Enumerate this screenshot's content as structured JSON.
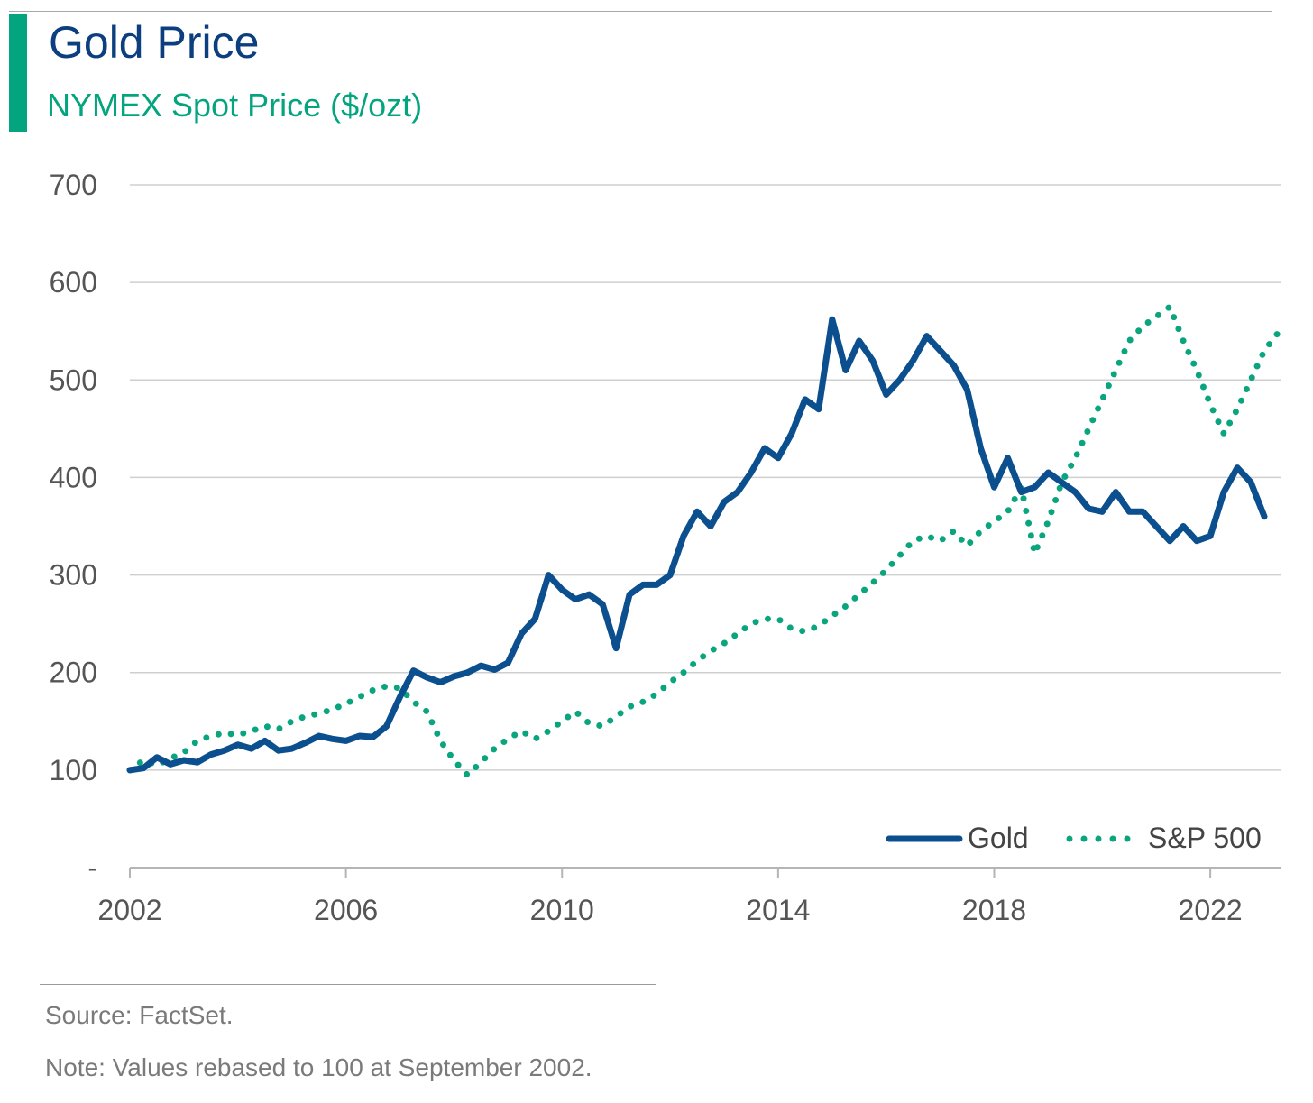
{
  "header": {
    "title": "Gold Price",
    "subtitle": "NYMEX Spot Price ($/ozt)"
  },
  "colors": {
    "accent": "#03a47e",
    "gold": "#0b4f8f",
    "sp500": "#0aa57f",
    "grid": "#cfcfcf",
    "text": "#555555"
  },
  "footer": {
    "source": "Source: FactSet.",
    "note": "Note: Values rebased to 100 at September 2002."
  },
  "chart_data": {
    "type": "line",
    "title": "Gold Price",
    "subtitle": "NYMEX Spot Price ($/ozt)",
    "xlabel": "",
    "ylabel": "",
    "xlim": [
      2002,
      2023.3
    ],
    "ylim": [
      0,
      700
    ],
    "x_ticks": [
      2002,
      2006,
      2010,
      2014,
      2018,
      2022
    ],
    "x_tick_labels": [
      "2002",
      "2006",
      "2010",
      "2014",
      "2018",
      "2022"
    ],
    "y_ticks": [
      0,
      100,
      200,
      300,
      400,
      500,
      600,
      700
    ],
    "y_tick_labels": [
      "-",
      "100",
      "200",
      "300",
      "400",
      "500",
      "600",
      "700"
    ],
    "grid": true,
    "legend_position": "bottom-right",
    "series": [
      {
        "name": "Gold",
        "style": "solid",
        "points": [
          [
            2002.0,
            100
          ],
          [
            2002.25,
            102
          ],
          [
            2002.5,
            113
          ],
          [
            2002.75,
            106
          ],
          [
            2003.0,
            110
          ],
          [
            2003.25,
            108
          ],
          [
            2003.5,
            116
          ],
          [
            2003.75,
            120
          ],
          [
            2004.0,
            126
          ],
          [
            2004.25,
            122
          ],
          [
            2004.5,
            130
          ],
          [
            2004.75,
            120
          ],
          [
            2005.0,
            122
          ],
          [
            2005.25,
            128
          ],
          [
            2005.5,
            135
          ],
          [
            2005.75,
            132
          ],
          [
            2006.0,
            130
          ],
          [
            2006.25,
            135
          ],
          [
            2006.5,
            134
          ],
          [
            2006.75,
            145
          ],
          [
            2007.0,
            175
          ],
          [
            2007.25,
            202
          ],
          [
            2007.5,
            195
          ],
          [
            2007.75,
            190
          ],
          [
            2008.0,
            196
          ],
          [
            2008.25,
            200
          ],
          [
            2008.5,
            207
          ],
          [
            2008.75,
            203
          ],
          [
            2009.0,
            210
          ],
          [
            2009.25,
            240
          ],
          [
            2009.5,
            255
          ],
          [
            2009.75,
            300
          ],
          [
            2010.0,
            285
          ],
          [
            2010.25,
            275
          ],
          [
            2010.5,
            280
          ],
          [
            2010.75,
            270
          ],
          [
            2011.0,
            225
          ],
          [
            2011.25,
            280
          ],
          [
            2011.5,
            290
          ],
          [
            2011.75,
            290
          ],
          [
            2012.0,
            300
          ],
          [
            2012.25,
            340
          ],
          [
            2012.5,
            365
          ],
          [
            2012.75,
            350
          ],
          [
            2013.0,
            375
          ],
          [
            2013.25,
            385
          ],
          [
            2013.5,
            405
          ],
          [
            2013.75,
            430
          ],
          [
            2014.0,
            420
          ],
          [
            2014.25,
            445
          ],
          [
            2014.5,
            480
          ],
          [
            2014.75,
            470
          ],
          [
            2015.0,
            562
          ],
          [
            2015.25,
            510
          ],
          [
            2015.5,
            540
          ],
          [
            2015.75,
            520
          ],
          [
            2016.0,
            485
          ],
          [
            2016.25,
            500
          ],
          [
            2016.5,
            520
          ],
          [
            2016.75,
            545
          ],
          [
            2017.0,
            530
          ],
          [
            2017.25,
            515
          ],
          [
            2017.5,
            490
          ],
          [
            2017.75,
            430
          ],
          [
            2018.0,
            390
          ],
          [
            2018.25,
            420
          ],
          [
            2018.5,
            385
          ],
          [
            2018.75,
            390
          ],
          [
            2019.0,
            405
          ],
          [
            2019.25,
            395
          ],
          [
            2019.5,
            385
          ],
          [
            2019.75,
            368
          ],
          [
            2020.0,
            365
          ],
          [
            2020.25,
            385
          ],
          [
            2020.5,
            365
          ],
          [
            2020.75,
            365
          ],
          [
            2021.0,
            350
          ],
          [
            2021.25,
            335
          ],
          [
            2021.5,
            350
          ],
          [
            2021.75,
            335
          ],
          [
            2022.0,
            340
          ],
          [
            2022.25,
            385
          ],
          [
            2022.5,
            410
          ],
          [
            2022.75,
            395
          ],
          [
            2023.0,
            360
          ]
        ]
      },
      {
        "name": "S&P 500",
        "style": "dotted",
        "points": [
          [
            2002.0,
            100
          ],
          [
            2002.25,
            110
          ],
          [
            2002.5,
            105
          ],
          [
            2002.75,
            112
          ],
          [
            2003.0,
            118
          ],
          [
            2003.25,
            130
          ],
          [
            2003.5,
            135
          ],
          [
            2003.75,
            138
          ],
          [
            2004.0,
            136
          ],
          [
            2004.25,
            140
          ],
          [
            2004.5,
            145
          ],
          [
            2004.75,
            142
          ],
          [
            2005.0,
            150
          ],
          [
            2005.25,
            155
          ],
          [
            2005.5,
            158
          ],
          [
            2005.75,
            162
          ],
          [
            2006.0,
            168
          ],
          [
            2006.25,
            175
          ],
          [
            2006.5,
            182
          ],
          [
            2006.75,
            186
          ],
          [
            2007.0,
            184
          ],
          [
            2007.25,
            170
          ],
          [
            2007.5,
            160
          ],
          [
            2007.75,
            130
          ],
          [
            2008.0,
            110
          ],
          [
            2008.25,
            95
          ],
          [
            2008.5,
            108
          ],
          [
            2008.75,
            122
          ],
          [
            2009.0,
            132
          ],
          [
            2009.25,
            140
          ],
          [
            2009.5,
            132
          ],
          [
            2009.75,
            140
          ],
          [
            2010.0,
            150
          ],
          [
            2010.25,
            160
          ],
          [
            2010.5,
            148
          ],
          [
            2010.75,
            145
          ],
          [
            2011.0,
            155
          ],
          [
            2011.25,
            165
          ],
          [
            2011.5,
            170
          ],
          [
            2011.75,
            178
          ],
          [
            2012.0,
            190
          ],
          [
            2012.25,
            200
          ],
          [
            2012.5,
            212
          ],
          [
            2012.75,
            222
          ],
          [
            2013.0,
            230
          ],
          [
            2013.25,
            240
          ],
          [
            2013.5,
            250
          ],
          [
            2013.75,
            255
          ],
          [
            2014.0,
            255
          ],
          [
            2014.25,
            245
          ],
          [
            2014.5,
            242
          ],
          [
            2014.75,
            248
          ],
          [
            2015.0,
            258
          ],
          [
            2015.25,
            268
          ],
          [
            2015.5,
            280
          ],
          [
            2015.75,
            292
          ],
          [
            2016.0,
            305
          ],
          [
            2016.25,
            320
          ],
          [
            2016.5,
            335
          ],
          [
            2016.75,
            340
          ],
          [
            2017.0,
            335
          ],
          [
            2017.25,
            345
          ],
          [
            2017.5,
            330
          ],
          [
            2017.75,
            345
          ],
          [
            2018.0,
            355
          ],
          [
            2018.25,
            365
          ],
          [
            2018.5,
            390
          ],
          [
            2018.75,
            322
          ],
          [
            2019.0,
            355
          ],
          [
            2019.25,
            395
          ],
          [
            2019.5,
            420
          ],
          [
            2019.75,
            450
          ],
          [
            2020.0,
            480
          ],
          [
            2020.25,
            510
          ],
          [
            2020.5,
            540
          ],
          [
            2020.75,
            555
          ],
          [
            2021.0,
            565
          ],
          [
            2021.25,
            575
          ],
          [
            2021.5,
            540
          ],
          [
            2021.75,
            510
          ],
          [
            2022.0,
            475
          ],
          [
            2022.25,
            445
          ],
          [
            2022.5,
            470
          ],
          [
            2022.75,
            500
          ],
          [
            2023.0,
            530
          ],
          [
            2023.25,
            548
          ]
        ]
      }
    ]
  }
}
